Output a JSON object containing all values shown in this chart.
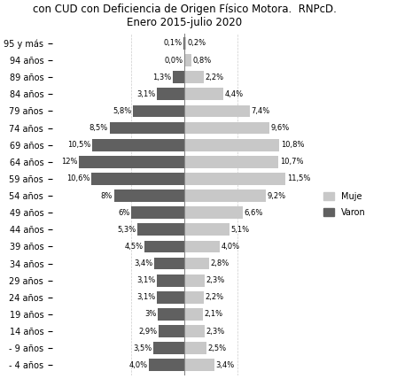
{
  "title_line1": "con CUD con Deficiencia de Origen Físico Motora.  RNPcD.",
  "title_line2": "Enero 2015-julio 2020",
  "categories": [
    "95 y más",
    "94 años",
    "89 años",
    "84 años",
    "79 años",
    "74 años",
    "69 años",
    "64 años",
    "59 años",
    "54 años",
    "49 años",
    "44 años",
    "39 años",
    "34 años",
    "29 años",
    "24 años",
    "19 años",
    "14 años",
    "- 9 años",
    "- 4 años"
  ],
  "varones": [
    0.1,
    0.0,
    1.3,
    3.1,
    5.8,
    8.5,
    10.5,
    12.0,
    10.6,
    8.0,
    6.0,
    5.3,
    4.5,
    3.4,
    3.1,
    3.1,
    3.0,
    2.9,
    3.5,
    4.0
  ],
  "mujeres": [
    0.2,
    0.8,
    2.2,
    4.4,
    7.4,
    9.6,
    10.8,
    10.7,
    11.5,
    9.2,
    6.6,
    5.1,
    4.0,
    2.8,
    2.3,
    2.2,
    2.1,
    2.3,
    2.5,
    3.4
  ],
  "varones_labels": [
    "0,1%",
    "0,0%",
    "1,3%",
    "3,1%",
    "5,8%",
    "8,5%",
    "10,5%",
    "12%",
    "10,6%",
    "8%",
    "6%",
    "5,3%",
    "4,5%",
    "3,4%",
    "3,1%",
    "3,1%",
    "3%",
    "2,9%",
    "3,5%",
    "4,0%"
  ],
  "mujeres_labels": [
    "0,2%",
    "0,8%",
    "2,2%",
    "4,4%",
    "7,4%",
    "9,6%",
    "10,8%",
    "10,7%",
    "11,5%",
    "9,2%",
    "6,6%",
    "5,1%",
    "4,0%",
    "2,8%",
    "2,3%",
    "2,2%",
    "2,1%",
    "2,3%",
    "2,5%",
    "3,4%"
  ],
  "color_varones": "#606060",
  "color_mujeres": "#c8c8c8",
  "legend_mujer": "Muje",
  "legend_varon": "Varon",
  "bg_color": "#ffffff",
  "label_fontsize": 6.0,
  "tick_fontsize": 7.0,
  "title_fontsize": 8.5,
  "xlim_left": -15,
  "xlim_right": 15
}
